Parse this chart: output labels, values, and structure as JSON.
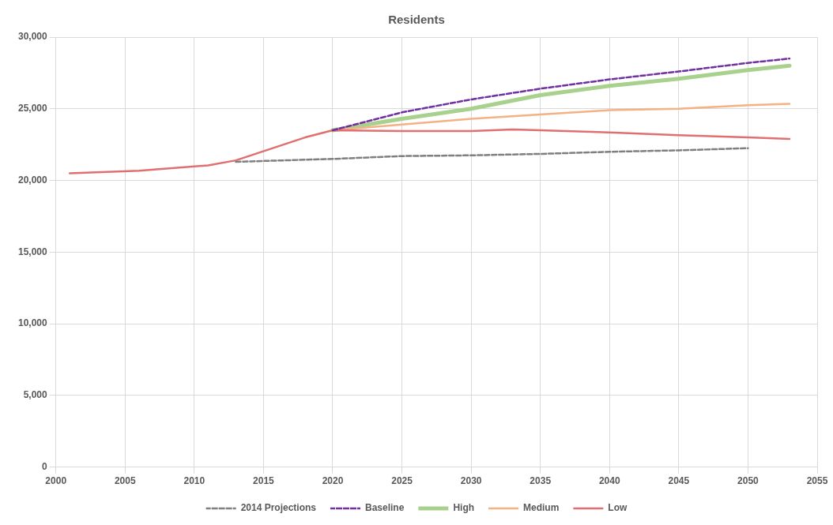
{
  "chart_data": {
    "type": "line",
    "title": "Residents",
    "xlim": [
      2000,
      2055
    ],
    "xticks": [
      2000,
      2005,
      2010,
      2015,
      2020,
      2025,
      2030,
      2035,
      2040,
      2045,
      2050,
      2055
    ],
    "ylim": [
      0,
      30000
    ],
    "yticks": [
      {
        "value": 0,
        "label": "0"
      },
      {
        "value": 5000,
        "label": "5,000"
      },
      {
        "value": 10000,
        "label": "10,000"
      },
      {
        "value": 15000,
        "label": "15,000"
      },
      {
        "value": 20000,
        "label": "20,000"
      },
      {
        "value": 25000,
        "label": "25,000"
      },
      {
        "value": 30000,
        "label": "30,000"
      }
    ],
    "grid": true,
    "legend": "bottom",
    "marker": "none",
    "series": [
      {
        "name": "2014 Projections",
        "color": "#7f7f7f",
        "line_style": "dashed",
        "x": [
          2013,
          2020,
          2025,
          2030,
          2035,
          2040,
          2045,
          2050
        ],
        "values": [
          21300,
          21500,
          21700,
          21750,
          21850,
          22000,
          22100,
          22250
        ]
      },
      {
        "name": "Baseline",
        "color": "#7030a0",
        "line_style": "dashed",
        "x": [
          2020,
          2025,
          2030,
          2035,
          2040,
          2045,
          2050,
          2053
        ],
        "values": [
          23500,
          24750,
          25650,
          26400,
          27050,
          27600,
          28200,
          28500
        ]
      },
      {
        "name": "High",
        "color": "#a9d18e",
        "line_style": "solid",
        "x": [
          2020,
          2025,
          2030,
          2035,
          2040,
          2045,
          2050,
          2053
        ],
        "values": [
          23500,
          24300,
          25000,
          25950,
          26600,
          27100,
          27700,
          28000
        ]
      },
      {
        "name": "Medium",
        "color": "#f4b183",
        "line_style": "solid",
        "x": [
          2020,
          2025,
          2030,
          2035,
          2040,
          2045,
          2050,
          2053
        ],
        "values": [
          23500,
          23900,
          24300,
          24600,
          24900,
          25000,
          25250,
          25350
        ]
      },
      {
        "name": "Low",
        "color": "#e07070",
        "line_style": "solid",
        "x": [
          2001,
          2006,
          2011,
          2013,
          2018,
          2020,
          2025,
          2030,
          2033,
          2035,
          2040,
          2045,
          2050,
          2053
        ],
        "values": [
          20500,
          20680,
          21050,
          21400,
          23000,
          23500,
          23450,
          23450,
          23550,
          23500,
          23350,
          23150,
          23000,
          22900
        ]
      }
    ]
  }
}
